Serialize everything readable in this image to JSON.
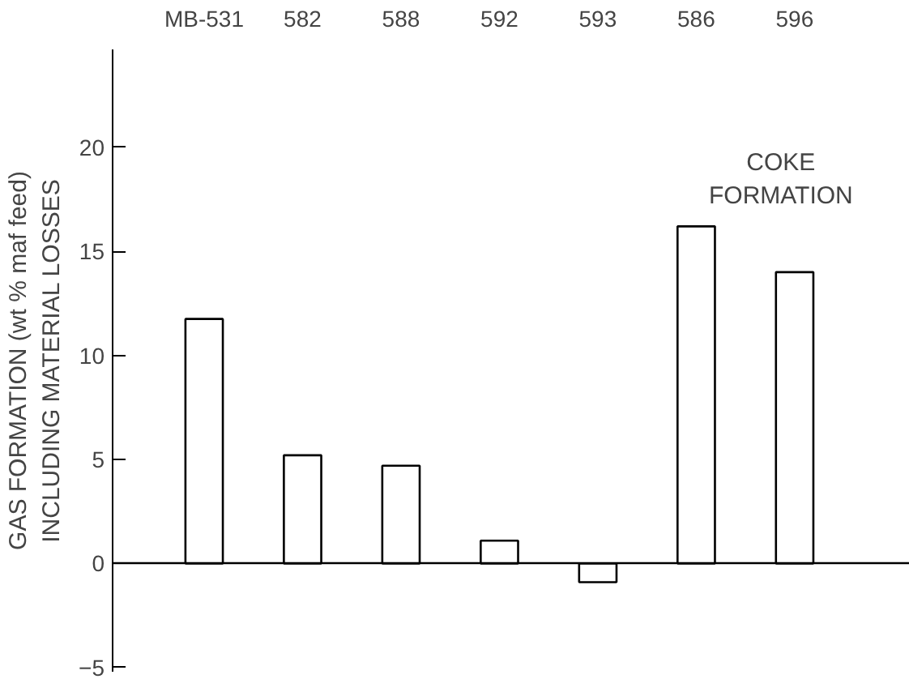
{
  "chart_data": {
    "type": "bar",
    "ylabel": "GAS FORMATION (wt % maf feed)\nINCLUDING MATERIAL LOSSES",
    "categories": [
      "MB-531",
      "582",
      "588",
      "592",
      "593",
      "586",
      "596"
    ],
    "values": [
      11.75,
      5.2,
      4.7,
      1.1,
      -0.9,
      16.2,
      14.0
    ],
    "color": "#ffffff",
    "ylim": [
      -5.2,
      24.7
    ],
    "yticks": [
      -5,
      0,
      5,
      10,
      15,
      20
    ],
    "annotations": [
      "COKE\nFORMATION"
    ]
  }
}
